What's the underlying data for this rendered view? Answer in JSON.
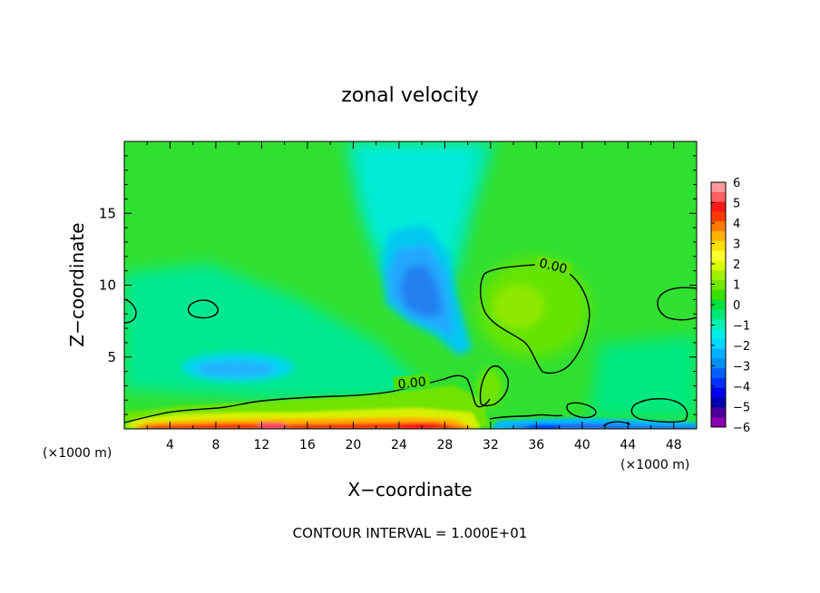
{
  "chart_data": {
    "type": "heatmap",
    "title": "zonal velocity",
    "xlabel": "X−coordinate",
    "ylabel": "Z−coordinate",
    "x_unit_left": "(×1000 m)",
    "x_unit_right": "(×1000 m)",
    "xlim": [
      0,
      50
    ],
    "ylim": [
      0,
      20
    ],
    "x_ticks": [
      "4",
      "8",
      "12",
      "16",
      "20",
      "24",
      "28",
      "32",
      "36",
      "40",
      "44",
      "48"
    ],
    "y_ticks": [
      "5",
      "10",
      "15"
    ],
    "footer": "CONTOUR INTERVAL = 1.000E+01",
    "contour_labels": [
      "0.00",
      "0.00"
    ],
    "colorbar": {
      "labels": [
        "6",
        "5",
        "4",
        "3",
        "2",
        "1",
        "0",
        "−1",
        "−2",
        "−3",
        "−4",
        "−5",
        "−6"
      ],
      "range": [
        -6,
        6
      ],
      "colors": [
        "#ff9a9a",
        "#ff6060",
        "#ff1818",
        "#ff3a00",
        "#ff7a00",
        "#ffb400",
        "#ffe000",
        "#ffff30",
        "#d8ff00",
        "#a0f000",
        "#70e800",
        "#38e000",
        "#00e040",
        "#00e878",
        "#00f0b0",
        "#00f0e8",
        "#00d8ff",
        "#00b0ff",
        "#0090f0",
        "#0060ff",
        "#0030ff",
        "#0000f0",
        "#0000b0",
        "#4a0098",
        "#8a00b0"
      ]
    }
  }
}
